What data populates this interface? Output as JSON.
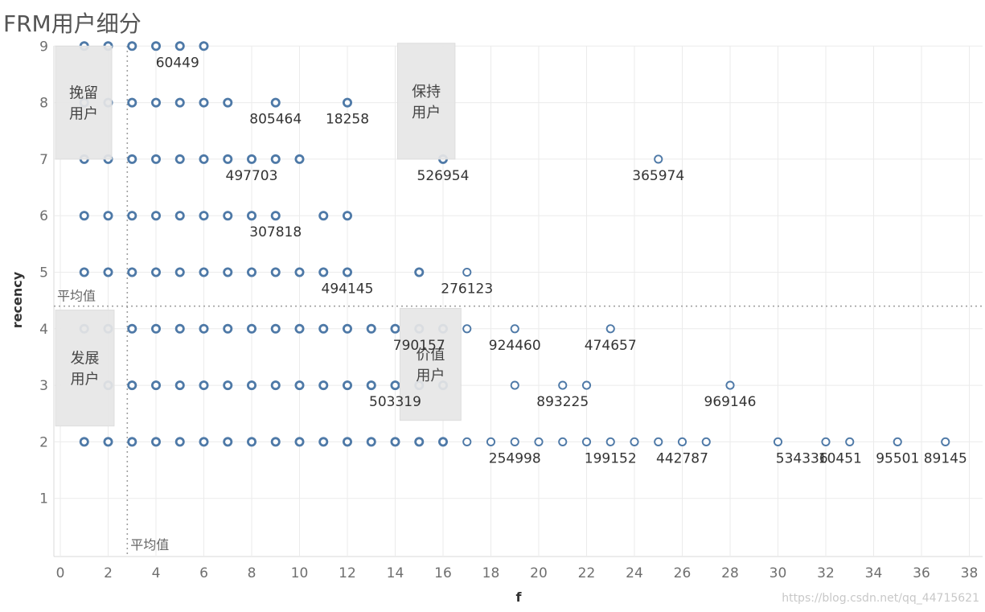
{
  "title": "FRM用户细分",
  "watermark": "https://blog.csdn.net/qq_44715621",
  "colors": {
    "point": "#4e79a7",
    "grid": "#ebebeb",
    "segment_box": "#e6e6e6",
    "reference_line": "#a0a0a0"
  },
  "chart_data": {
    "type": "scatter",
    "xlabel": "f",
    "ylabel": "recency",
    "xlim": [
      0,
      38
    ],
    "ylim": [
      1,
      10
    ],
    "x_ticks": [
      0,
      2,
      4,
      6,
      8,
      10,
      12,
      14,
      16,
      18,
      20,
      22,
      24,
      26,
      28,
      30,
      32,
      34,
      36,
      38
    ],
    "y_ticks": [
      1,
      2,
      3,
      4,
      5,
      6,
      7,
      8,
      9,
      10
    ],
    "grid": true,
    "points": [
      {
        "x": 1,
        "y": 9
      },
      {
        "x": 2,
        "y": 9
      },
      {
        "x": 3,
        "y": 9
      },
      {
        "x": 4,
        "y": 9
      },
      {
        "x": 5,
        "y": 9
      },
      {
        "x": 6,
        "y": 9
      },
      {
        "x": 1,
        "y": 8
      },
      {
        "x": 2,
        "y": 8
      },
      {
        "x": 3,
        "y": 8
      },
      {
        "x": 4,
        "y": 8
      },
      {
        "x": 5,
        "y": 8
      },
      {
        "x": 6,
        "y": 8
      },
      {
        "x": 7,
        "y": 8
      },
      {
        "x": 9,
        "y": 8
      },
      {
        "x": 12,
        "y": 8
      },
      {
        "x": 1,
        "y": 7
      },
      {
        "x": 2,
        "y": 7
      },
      {
        "x": 3,
        "y": 7
      },
      {
        "x": 4,
        "y": 7
      },
      {
        "x": 5,
        "y": 7
      },
      {
        "x": 6,
        "y": 7
      },
      {
        "x": 7,
        "y": 7
      },
      {
        "x": 8,
        "y": 7
      },
      {
        "x": 9,
        "y": 7
      },
      {
        "x": 10,
        "y": 7
      },
      {
        "x": 16,
        "y": 7
      },
      {
        "x": 25,
        "y": 7
      },
      {
        "x": 1,
        "y": 6
      },
      {
        "x": 2,
        "y": 6
      },
      {
        "x": 3,
        "y": 6
      },
      {
        "x": 4,
        "y": 6
      },
      {
        "x": 5,
        "y": 6
      },
      {
        "x": 6,
        "y": 6
      },
      {
        "x": 7,
        "y": 6
      },
      {
        "x": 8,
        "y": 6
      },
      {
        "x": 9,
        "y": 6
      },
      {
        "x": 11,
        "y": 6
      },
      {
        "x": 12,
        "y": 6
      },
      {
        "x": 1,
        "y": 5
      },
      {
        "x": 2,
        "y": 5
      },
      {
        "x": 3,
        "y": 5
      },
      {
        "x": 4,
        "y": 5
      },
      {
        "x": 5,
        "y": 5
      },
      {
        "x": 6,
        "y": 5
      },
      {
        "x": 7,
        "y": 5
      },
      {
        "x": 8,
        "y": 5
      },
      {
        "x": 9,
        "y": 5
      },
      {
        "x": 10,
        "y": 5
      },
      {
        "x": 11,
        "y": 5
      },
      {
        "x": 12,
        "y": 5
      },
      {
        "x": 15,
        "y": 5
      },
      {
        "x": 17,
        "y": 5
      },
      {
        "x": 1,
        "y": 4
      },
      {
        "x": 2,
        "y": 4
      },
      {
        "x": 3,
        "y": 4
      },
      {
        "x": 4,
        "y": 4
      },
      {
        "x": 5,
        "y": 4
      },
      {
        "x": 6,
        "y": 4
      },
      {
        "x": 7,
        "y": 4
      },
      {
        "x": 8,
        "y": 4
      },
      {
        "x": 9,
        "y": 4
      },
      {
        "x": 10,
        "y": 4
      },
      {
        "x": 11,
        "y": 4
      },
      {
        "x": 12,
        "y": 4
      },
      {
        "x": 13,
        "y": 4
      },
      {
        "x": 14,
        "y": 4
      },
      {
        "x": 15,
        "y": 4
      },
      {
        "x": 16,
        "y": 4
      },
      {
        "x": 17,
        "y": 4
      },
      {
        "x": 19,
        "y": 4
      },
      {
        "x": 23,
        "y": 4
      },
      {
        "x": 2,
        "y": 3
      },
      {
        "x": 3,
        "y": 3
      },
      {
        "x": 4,
        "y": 3
      },
      {
        "x": 5,
        "y": 3
      },
      {
        "x": 6,
        "y": 3
      },
      {
        "x": 7,
        "y": 3
      },
      {
        "x": 8,
        "y": 3
      },
      {
        "x": 9,
        "y": 3
      },
      {
        "x": 10,
        "y": 3
      },
      {
        "x": 11,
        "y": 3
      },
      {
        "x": 12,
        "y": 3
      },
      {
        "x": 13,
        "y": 3
      },
      {
        "x": 14,
        "y": 3
      },
      {
        "x": 15,
        "y": 3
      },
      {
        "x": 16,
        "y": 3
      },
      {
        "x": 19,
        "y": 3
      },
      {
        "x": 21,
        "y": 3
      },
      {
        "x": 22,
        "y": 3
      },
      {
        "x": 28,
        "y": 3
      },
      {
        "x": 1,
        "y": 2
      },
      {
        "x": 2,
        "y": 2
      },
      {
        "x": 3,
        "y": 2
      },
      {
        "x": 4,
        "y": 2
      },
      {
        "x": 5,
        "y": 2
      },
      {
        "x": 6,
        "y": 2
      },
      {
        "x": 7,
        "y": 2
      },
      {
        "x": 8,
        "y": 2
      },
      {
        "x": 9,
        "y": 2
      },
      {
        "x": 10,
        "y": 2
      },
      {
        "x": 11,
        "y": 2
      },
      {
        "x": 12,
        "y": 2
      },
      {
        "x": 13,
        "y": 2
      },
      {
        "x": 14,
        "y": 2
      },
      {
        "x": 15,
        "y": 2
      },
      {
        "x": 16,
        "y": 2
      },
      {
        "x": 17,
        "y": 2
      },
      {
        "x": 18,
        "y": 2
      },
      {
        "x": 19,
        "y": 2
      },
      {
        "x": 20,
        "y": 2
      },
      {
        "x": 21,
        "y": 2
      },
      {
        "x": 22,
        "y": 2
      },
      {
        "x": 23,
        "y": 2
      },
      {
        "x": 24,
        "y": 2
      },
      {
        "x": 25,
        "y": 2
      },
      {
        "x": 26,
        "y": 2
      },
      {
        "x": 27,
        "y": 2
      },
      {
        "x": 30,
        "y": 2
      },
      {
        "x": 32,
        "y": 2
      },
      {
        "x": 33,
        "y": 2
      },
      {
        "x": 35,
        "y": 2
      },
      {
        "x": 37,
        "y": 2
      }
    ],
    "point_labels": [
      {
        "x": 4.9,
        "y": 9,
        "text": "60449"
      },
      {
        "x": 9,
        "y": 8,
        "text": "805464"
      },
      {
        "x": 12,
        "y": 8,
        "text": "18258"
      },
      {
        "x": 8,
        "y": 7,
        "text": "497703"
      },
      {
        "x": 16,
        "y": 7,
        "text": "526954"
      },
      {
        "x": 25,
        "y": 7,
        "text": "365974"
      },
      {
        "x": 9,
        "y": 6,
        "text": "307818"
      },
      {
        "x": 12,
        "y": 5,
        "text": "494145"
      },
      {
        "x": 17,
        "y": 5,
        "text": "276123"
      },
      {
        "x": 15,
        "y": 4,
        "text": "790157"
      },
      {
        "x": 19,
        "y": 4,
        "text": "924460"
      },
      {
        "x": 23,
        "y": 4,
        "text": "474657"
      },
      {
        "x": 14,
        "y": 3,
        "text": "503319"
      },
      {
        "x": 21,
        "y": 3,
        "text": "893225"
      },
      {
        "x": 28,
        "y": 3,
        "text": "969146"
      },
      {
        "x": 19,
        "y": 2,
        "text": "254998"
      },
      {
        "x": 23,
        "y": 2,
        "text": "199152"
      },
      {
        "x": 26,
        "y": 2,
        "text": "442787"
      },
      {
        "x": 31,
        "y": 2,
        "text": "534336"
      },
      {
        "x": 32.6,
        "y": 2,
        "text": "10451"
      },
      {
        "x": 35,
        "y": 2,
        "text": "95501"
      },
      {
        "x": 37,
        "y": 2,
        "text": "89145"
      }
    ],
    "reference_lines": [
      {
        "axis": "x",
        "value": 2.8,
        "label": "平均值"
      },
      {
        "axis": "y",
        "value": 4.4,
        "label": "平均值"
      }
    ],
    "segments": [
      {
        "line1": "挽留",
        "line2": "用户",
        "x0": -0.2,
        "x1": 2.15,
        "y0": 7.0,
        "y1": 9.0
      },
      {
        "line1": "保持",
        "line2": "用户",
        "x0": 14.1,
        "x1": 16.5,
        "y0": 7.0,
        "y1": 9.05
      },
      {
        "line1": "发展",
        "line2": "用户",
        "x0": -0.2,
        "x1": 2.25,
        "y0": 2.28,
        "y1": 4.33
      },
      {
        "line1": "价值",
        "line2": "用户",
        "x0": 14.2,
        "x1": 16.75,
        "y0": 2.38,
        "y1": 4.36
      }
    ]
  }
}
